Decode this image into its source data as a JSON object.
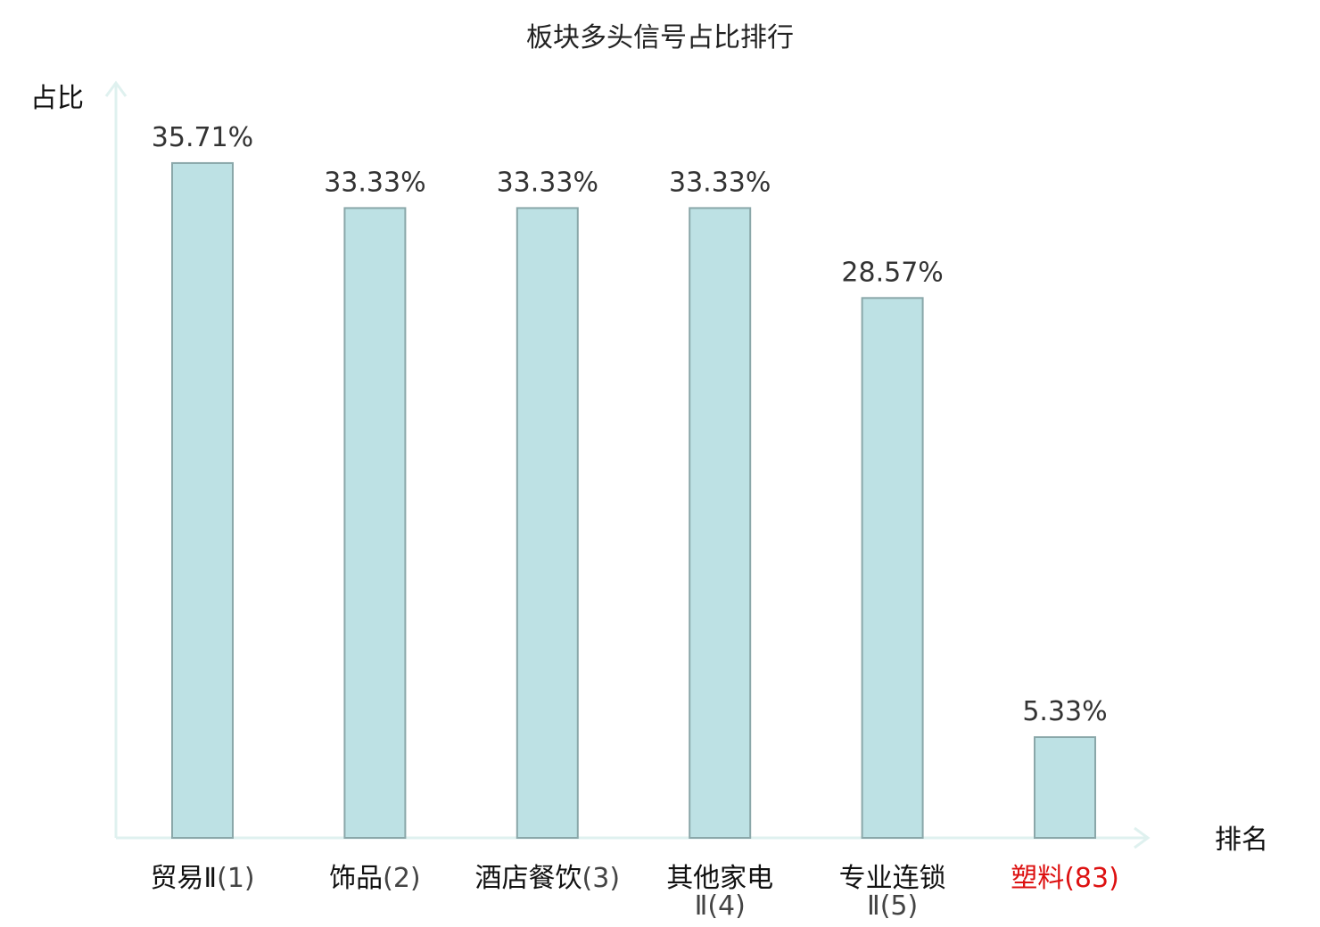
{
  "chart_data": {
    "type": "bar",
    "title": "板块多头信号占比排行",
    "xlabel": "排名",
    "ylabel": "占比",
    "ylim": [
      0,
      40
    ],
    "grid": false,
    "legend": "none",
    "categories": [
      {
        "name": "贸易Ⅱ",
        "rank": "(1)",
        "highlight": false
      },
      {
        "name": "饰品",
        "rank": "(2)",
        "highlight": false
      },
      {
        "name": "酒店餐饮",
        "rank": "(3)",
        "highlight": false
      },
      {
        "name": "其他家电Ⅱ",
        "rank": "(4)",
        "highlight": false
      },
      {
        "name": "专业连锁Ⅱ",
        "rank": "(5)",
        "highlight": false
      },
      {
        "name": "塑料",
        "rank": "(83)",
        "highlight": true
      }
    ],
    "values": [
      35.71,
      33.33,
      33.33,
      33.33,
      28.57,
      5.33
    ],
    "value_labels": [
      "35.71%",
      "33.33%",
      "33.33%",
      "33.33%",
      "28.57%",
      "5.33%"
    ],
    "colors": {
      "bar_fill": "#bde1e4",
      "bar_stroke": "#8aa7a9",
      "axis": "#dff1ef",
      "highlight_text": "#dd1111"
    }
  }
}
